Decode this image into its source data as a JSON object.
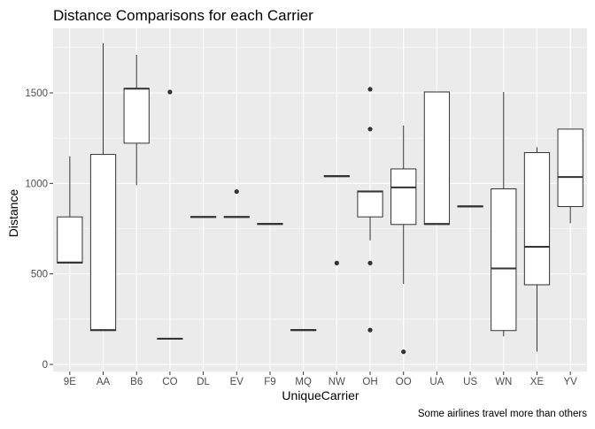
{
  "chart_data": {
    "type": "boxplot",
    "title": "Distance Comparisons for each Carrier",
    "xlabel": "UniqueCarrier",
    "ylabel": "Distance",
    "caption": "Some airlines travel more than others",
    "ylim": [
      0,
      1850
    ],
    "yticks": [
      0,
      500,
      1000,
      1500
    ],
    "grid": true,
    "categories": [
      "9E",
      "AA",
      "B6",
      "CO",
      "DL",
      "EV",
      "F9",
      "MQ",
      "NW",
      "OH",
      "OO",
      "UA",
      "US",
      "WN",
      "XE",
      "YV"
    ],
    "boxes": [
      {
        "carrier": "9E",
        "whisker_low": 560,
        "q1": 560,
        "median": 563,
        "q3": 815,
        "whisker_high": 1150,
        "outliers": []
      },
      {
        "carrier": "AA",
        "whisker_low": 187,
        "q1": 187,
        "median": 190,
        "q3": 1160,
        "whisker_high": 1775,
        "outliers": []
      },
      {
        "carrier": "B6",
        "whisker_low": 990,
        "q1": 1222,
        "median": 1523,
        "q3": 1525,
        "whisker_high": 1710,
        "outliers": []
      },
      {
        "carrier": "CO",
        "whisker_low": 140,
        "q1": 140,
        "median": 142,
        "q3": 144,
        "whisker_high": 144,
        "outliers": [
          1505
        ]
      },
      {
        "carrier": "DL",
        "whisker_low": 812,
        "q1": 812,
        "median": 815,
        "q3": 817,
        "whisker_high": 817,
        "outliers": []
      },
      {
        "carrier": "EV",
        "whisker_low": 812,
        "q1": 812,
        "median": 815,
        "q3": 817,
        "whisker_high": 817,
        "outliers": [
          955
        ]
      },
      {
        "carrier": "F9",
        "whisker_low": 773,
        "q1": 773,
        "median": 776,
        "q3": 779,
        "whisker_high": 779,
        "outliers": []
      },
      {
        "carrier": "MQ",
        "whisker_low": 187,
        "q1": 187,
        "median": 190,
        "q3": 193,
        "whisker_high": 193,
        "outliers": []
      },
      {
        "carrier": "NW",
        "whisker_low": 1037,
        "q1": 1037,
        "median": 1040,
        "q3": 1043,
        "whisker_high": 1043,
        "outliers": [
          560
        ]
      },
      {
        "carrier": "OH",
        "whisker_low": 685,
        "q1": 815,
        "median": 955,
        "q3": 958,
        "whisker_high": 958,
        "outliers": [
          1520,
          1300,
          560,
          190
        ]
      },
      {
        "carrier": "OO",
        "whisker_low": 445,
        "q1": 773,
        "median": 978,
        "q3": 1080,
        "whisker_high": 1320,
        "outliers": [
          70
        ]
      },
      {
        "carrier": "UA",
        "whisker_low": 773,
        "q1": 773,
        "median": 776,
        "q3": 1505,
        "whisker_high": 1505,
        "outliers": []
      },
      {
        "carrier": "US",
        "whisker_low": 870,
        "q1": 870,
        "median": 873,
        "q3": 876,
        "whisker_high": 876,
        "outliers": []
      },
      {
        "carrier": "WN",
        "whisker_low": 155,
        "q1": 187,
        "median": 530,
        "q3": 970,
        "whisker_high": 1505,
        "outliers": []
      },
      {
        "carrier": "XE",
        "whisker_low": 70,
        "q1": 440,
        "median": 650,
        "q3": 1170,
        "whisker_high": 1200,
        "outliers": []
      },
      {
        "carrier": "YV",
        "whisker_low": 780,
        "q1": 872,
        "median": 1035,
        "q3": 1300,
        "whisker_high": 1300,
        "outliers": []
      }
    ]
  }
}
